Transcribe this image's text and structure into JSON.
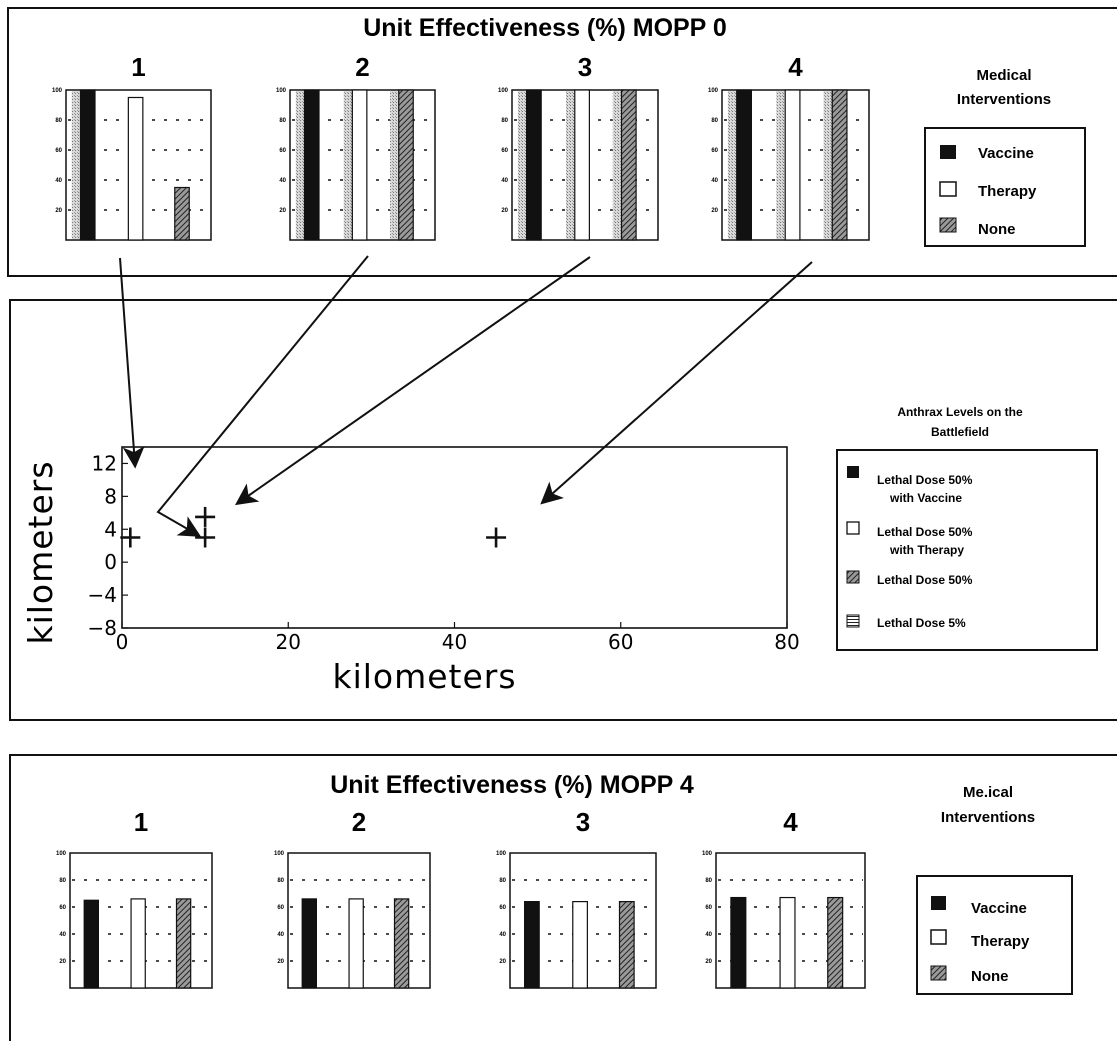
{
  "colors": {
    "vaccine": "#111111",
    "therapy": "#ffffff",
    "none": "#4a4a4a",
    "lethal5": "#777777",
    "ink": "#111111",
    "stipple": "#c8c8c8"
  },
  "legend_medical": {
    "title_line1": "Medical",
    "title_line2": "Interventions",
    "items": [
      "Vaccine",
      "Therapy",
      "None"
    ]
  },
  "legend_medical_bottom": {
    "title_line1": "Me.ical",
    "title_line2": "Interventions",
    "items": [
      "Vaccine",
      "Therapy",
      "None"
    ]
  },
  "legend_anthrax": {
    "title_line1": "Anthrax Levels on the",
    "title_line2": "Battlefield",
    "items": [
      {
        "line1": "Lethal Dose 50%",
        "line2": "with Vaccine",
        "icon": "vaccine"
      },
      {
        "line1": "Lethal Dose 50%",
        "line2": "with Therapy",
        "icon": "therapy"
      },
      {
        "line1": "Lethal Dose 50%",
        "line2": "",
        "icon": "none"
      },
      {
        "line1": "Lethal Dose 5%",
        "line2": "",
        "icon": "lethal5"
      }
    ]
  },
  "chart_data": [
    {
      "type": "bar",
      "title": "Unit Effectiveness (%) MOPP 0",
      "ylim": [
        0,
        100
      ],
      "yticks": [
        "100",
        "80",
        "60",
        "40",
        "20"
      ],
      "panels": [
        {
          "label": "1",
          "categories": [
            "Vaccine",
            "Therapy",
            "None"
          ],
          "values": [
            100,
            95,
            35
          ]
        },
        {
          "label": "2",
          "categories": [
            "Vaccine",
            "Therapy",
            "None"
          ],
          "values": [
            100,
            100,
            100
          ]
        },
        {
          "label": "3",
          "categories": [
            "Vaccine",
            "Therapy",
            "None"
          ],
          "values": [
            100,
            100,
            100
          ]
        },
        {
          "label": "4",
          "categories": [
            "Vaccine",
            "Therapy",
            "None"
          ],
          "values": [
            100,
            100,
            100
          ]
        }
      ]
    },
    {
      "type": "scatter",
      "xlabel": "kilometers",
      "ylabel": "kilometers",
      "xlim": [
        0,
        80
      ],
      "ylim": [
        -8,
        14
      ],
      "xticks": [
        "0",
        "20",
        "40",
        "60",
        "80"
      ],
      "yticks": [
        "12",
        "8",
        "4",
        "0",
        "−4",
        "−8"
      ],
      "points": [
        {
          "unit": "1",
          "x": 1,
          "y": 3
        },
        {
          "unit": "2",
          "x": 10,
          "y": 3
        },
        {
          "unit": "3",
          "x": 10,
          "y": 5.5
        },
        {
          "unit": "4",
          "x": 45,
          "y": 3
        }
      ]
    },
    {
      "type": "bar",
      "title": "Unit Effectiveness (%) MOPP 4",
      "ylim": [
        0,
        100
      ],
      "yticks": [
        "100",
        "80",
        "60",
        "40",
        "20"
      ],
      "panels": [
        {
          "label": "1",
          "categories": [
            "Vaccine",
            "Therapy",
            "None"
          ],
          "values": [
            65,
            66,
            66
          ]
        },
        {
          "label": "2",
          "categories": [
            "Vaccine",
            "Therapy",
            "None"
          ],
          "values": [
            66,
            66,
            66
          ]
        },
        {
          "label": "3",
          "categories": [
            "Vaccine",
            "Therapy",
            "None"
          ],
          "values": [
            64,
            64,
            64
          ]
        },
        {
          "label": "4",
          "categories": [
            "Vaccine",
            "Therapy",
            "None"
          ],
          "values": [
            67,
            67,
            67
          ]
        }
      ]
    }
  ]
}
